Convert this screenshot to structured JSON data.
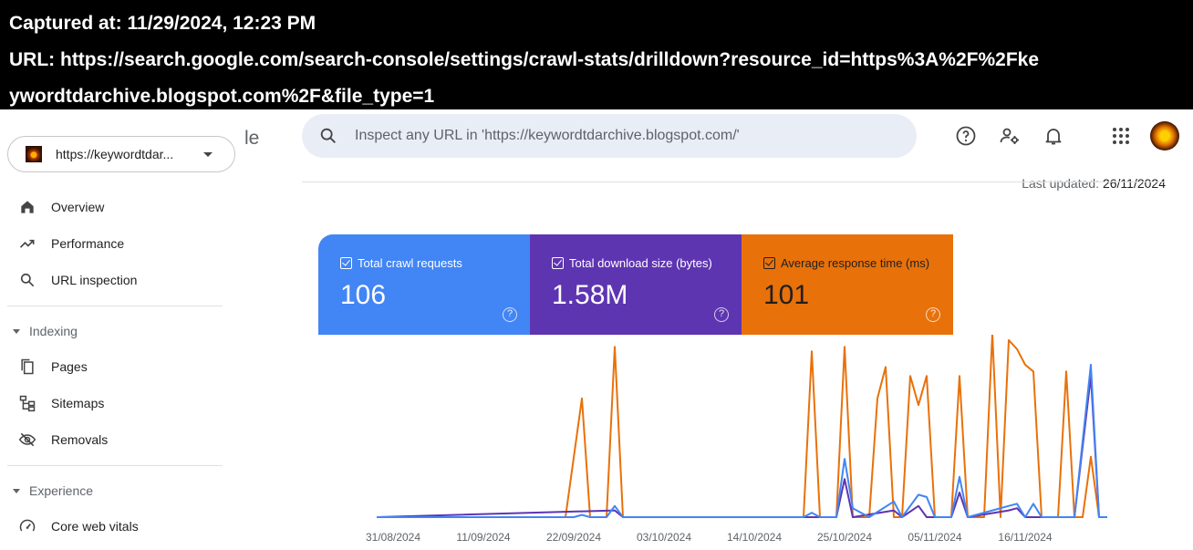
{
  "capture": {
    "line1": "Captured at: 11/29/2024, 12:23 PM",
    "line2": "URL: https://search.google.com/search-console/settings/crawl-stats/drilldown?resource_id=https%3A%2F%2Fke",
    "line3": "ywordtdarchive.blogspot.com%2F&file_type=1"
  },
  "header": {
    "property": "https://keywordtdar...",
    "logo_fragment": "le",
    "search_placeholder": "Inspect any URL in 'https://keywordtdarchive.blogspot.com/'",
    "icons": [
      "help-icon",
      "manage-users-icon",
      "notifications-icon",
      "apps-grid-icon"
    ]
  },
  "nav": {
    "items_top": [
      {
        "label": "Overview",
        "icon": "home-icon"
      },
      {
        "label": "Performance",
        "icon": "trending-up-icon"
      },
      {
        "label": "URL inspection",
        "icon": "search-icon"
      }
    ],
    "indexing_label": "Indexing",
    "indexing_items": [
      {
        "label": "Pages",
        "icon": "pages-icon"
      },
      {
        "label": "Sitemaps",
        "icon": "sitemap-icon"
      },
      {
        "label": "Removals",
        "icon": "visibility-off-icon"
      }
    ],
    "experience_label": "Experience",
    "experience_items": [
      {
        "label": "Core web vitals",
        "icon": "speedometer-icon"
      }
    ]
  },
  "updated": {
    "label": "Last updated:",
    "value": "26/11/2024"
  },
  "metrics": [
    {
      "label": "Total crawl requests",
      "value": "106",
      "color": "#4285f4",
      "checked": true
    },
    {
      "label": "Total download size (bytes)",
      "value": "1.58M",
      "color": "#5e35b1",
      "checked": true
    },
    {
      "label": "Average response time (ms)",
      "value": "101",
      "color": "#e8710a",
      "checked": true
    }
  ],
  "chart_data": {
    "type": "line",
    "x_tick_labels": [
      "31/08/2024",
      "11/09/2024",
      "22/09/2024",
      "03/10/2024",
      "14/10/2024",
      "25/10/2024",
      "05/11/2024",
      "16/11/2024"
    ],
    "x_start": "2024-08-29",
    "x_end": "2024-11-26",
    "grid": false,
    "series": [
      {
        "name": "Total crawl requests",
        "color": "#4285f4",
        "points": [
          [
            "2024-08-29",
            0
          ],
          [
            "2024-09-22",
            0
          ],
          [
            "2024-09-23",
            1
          ],
          [
            "2024-09-24",
            0
          ],
          [
            "2024-09-26",
            0
          ],
          [
            "2024-09-27",
            5
          ],
          [
            "2024-09-28",
            0
          ],
          [
            "2024-10-20",
            0
          ],
          [
            "2024-10-21",
            2
          ],
          [
            "2024-10-22",
            0
          ],
          [
            "2024-10-24",
            0
          ],
          [
            "2024-10-25",
            26
          ],
          [
            "2024-10-26",
            4
          ],
          [
            "2024-10-28",
            0
          ],
          [
            "2024-10-31",
            7
          ],
          [
            "2024-11-01",
            0
          ],
          [
            "2024-11-03",
            10
          ],
          [
            "2024-11-04",
            9
          ],
          [
            "2024-11-05",
            0
          ],
          [
            "2024-11-07",
            0
          ],
          [
            "2024-11-08",
            18
          ],
          [
            "2024-11-09",
            0
          ],
          [
            "2024-11-12",
            3
          ],
          [
            "2024-11-14",
            5
          ],
          [
            "2024-11-15",
            6
          ],
          [
            "2024-11-16",
            0
          ],
          [
            "2024-11-17",
            6
          ],
          [
            "2024-11-18",
            0
          ],
          [
            "2024-11-22",
            0
          ],
          [
            "2024-11-24",
            68
          ],
          [
            "2024-11-25",
            0
          ],
          [
            "2024-11-26",
            0
          ]
        ]
      },
      {
        "name": "Total download size (bytes)",
        "color": "#5e35b1",
        "points": [
          [
            "2024-08-29",
            0
          ],
          [
            "2024-09-27",
            3
          ],
          [
            "2024-09-28",
            0
          ],
          [
            "2024-10-24",
            0
          ],
          [
            "2024-10-25",
            17
          ],
          [
            "2024-10-26",
            0
          ],
          [
            "2024-10-31",
            3
          ],
          [
            "2024-11-01",
            0
          ],
          [
            "2024-11-03",
            5
          ],
          [
            "2024-11-04",
            0
          ],
          [
            "2024-11-07",
            0
          ],
          [
            "2024-11-08",
            11
          ],
          [
            "2024-11-09",
            0
          ],
          [
            "2024-11-14",
            3
          ],
          [
            "2024-11-15",
            4
          ],
          [
            "2024-11-16",
            0
          ],
          [
            "2024-11-22",
            0
          ],
          [
            "2024-11-24",
            63
          ],
          [
            "2024-11-25",
            0
          ],
          [
            "2024-11-26",
            0
          ]
        ]
      },
      {
        "name": "Average response time (ms)",
        "color": "#e8710a",
        "points": [
          [
            "2024-08-29",
            0
          ],
          [
            "2024-09-21",
            0
          ],
          [
            "2024-09-23",
            53
          ],
          [
            "2024-09-24",
            0
          ],
          [
            "2024-09-26",
            0
          ],
          [
            "2024-09-27",
            76
          ],
          [
            "2024-09-28",
            0
          ],
          [
            "2024-10-20",
            0
          ],
          [
            "2024-10-21",
            74
          ],
          [
            "2024-10-22",
            0
          ],
          [
            "2024-10-24",
            0
          ],
          [
            "2024-10-25",
            76
          ],
          [
            "2024-10-26",
            0
          ],
          [
            "2024-10-28",
            0
          ],
          [
            "2024-10-29",
            53
          ],
          [
            "2024-10-30",
            67
          ],
          [
            "2024-10-31",
            0
          ],
          [
            "2024-11-01",
            0
          ],
          [
            "2024-11-02",
            63
          ],
          [
            "2024-11-03",
            50
          ],
          [
            "2024-11-04",
            63
          ],
          [
            "2024-11-05",
            0
          ],
          [
            "2024-11-07",
            0
          ],
          [
            "2024-11-08",
            63
          ],
          [
            "2024-11-09",
            0
          ],
          [
            "2024-11-11",
            0
          ],
          [
            "2024-11-12",
            82
          ],
          [
            "2024-11-13",
            0
          ],
          [
            "2024-11-14",
            79
          ],
          [
            "2024-11-15",
            75
          ],
          [
            "2024-11-16",
            68
          ],
          [
            "2024-11-17",
            65
          ],
          [
            "2024-11-18",
            0
          ],
          [
            "2024-11-20",
            0
          ],
          [
            "2024-11-21",
            65
          ],
          [
            "2024-11-22",
            0
          ],
          [
            "2024-11-23",
            0
          ],
          [
            "2024-11-24",
            27
          ],
          [
            "2024-11-25",
            0
          ],
          [
            "2024-11-26",
            0
          ]
        ]
      }
    ]
  }
}
